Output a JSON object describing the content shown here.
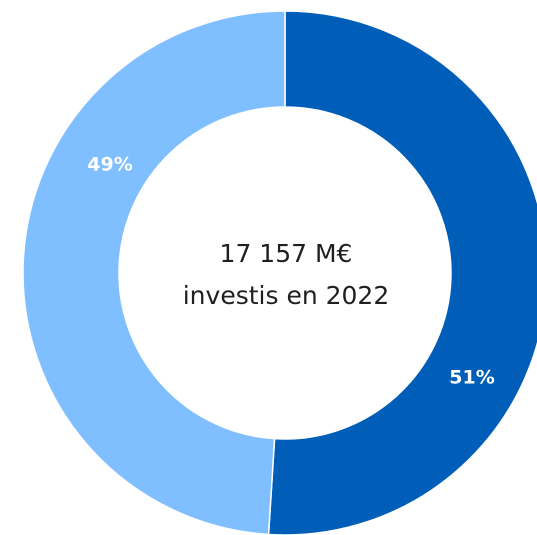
{
  "chart_data": {
    "type": "donut",
    "values": [
      51,
      49
    ],
    "value_labels": [
      "51%",
      "49%"
    ],
    "colors": [
      "#005eb8",
      "#80bfff"
    ],
    "center_text": [
      "17 157 M€",
      "investis en 2022"
    ]
  }
}
